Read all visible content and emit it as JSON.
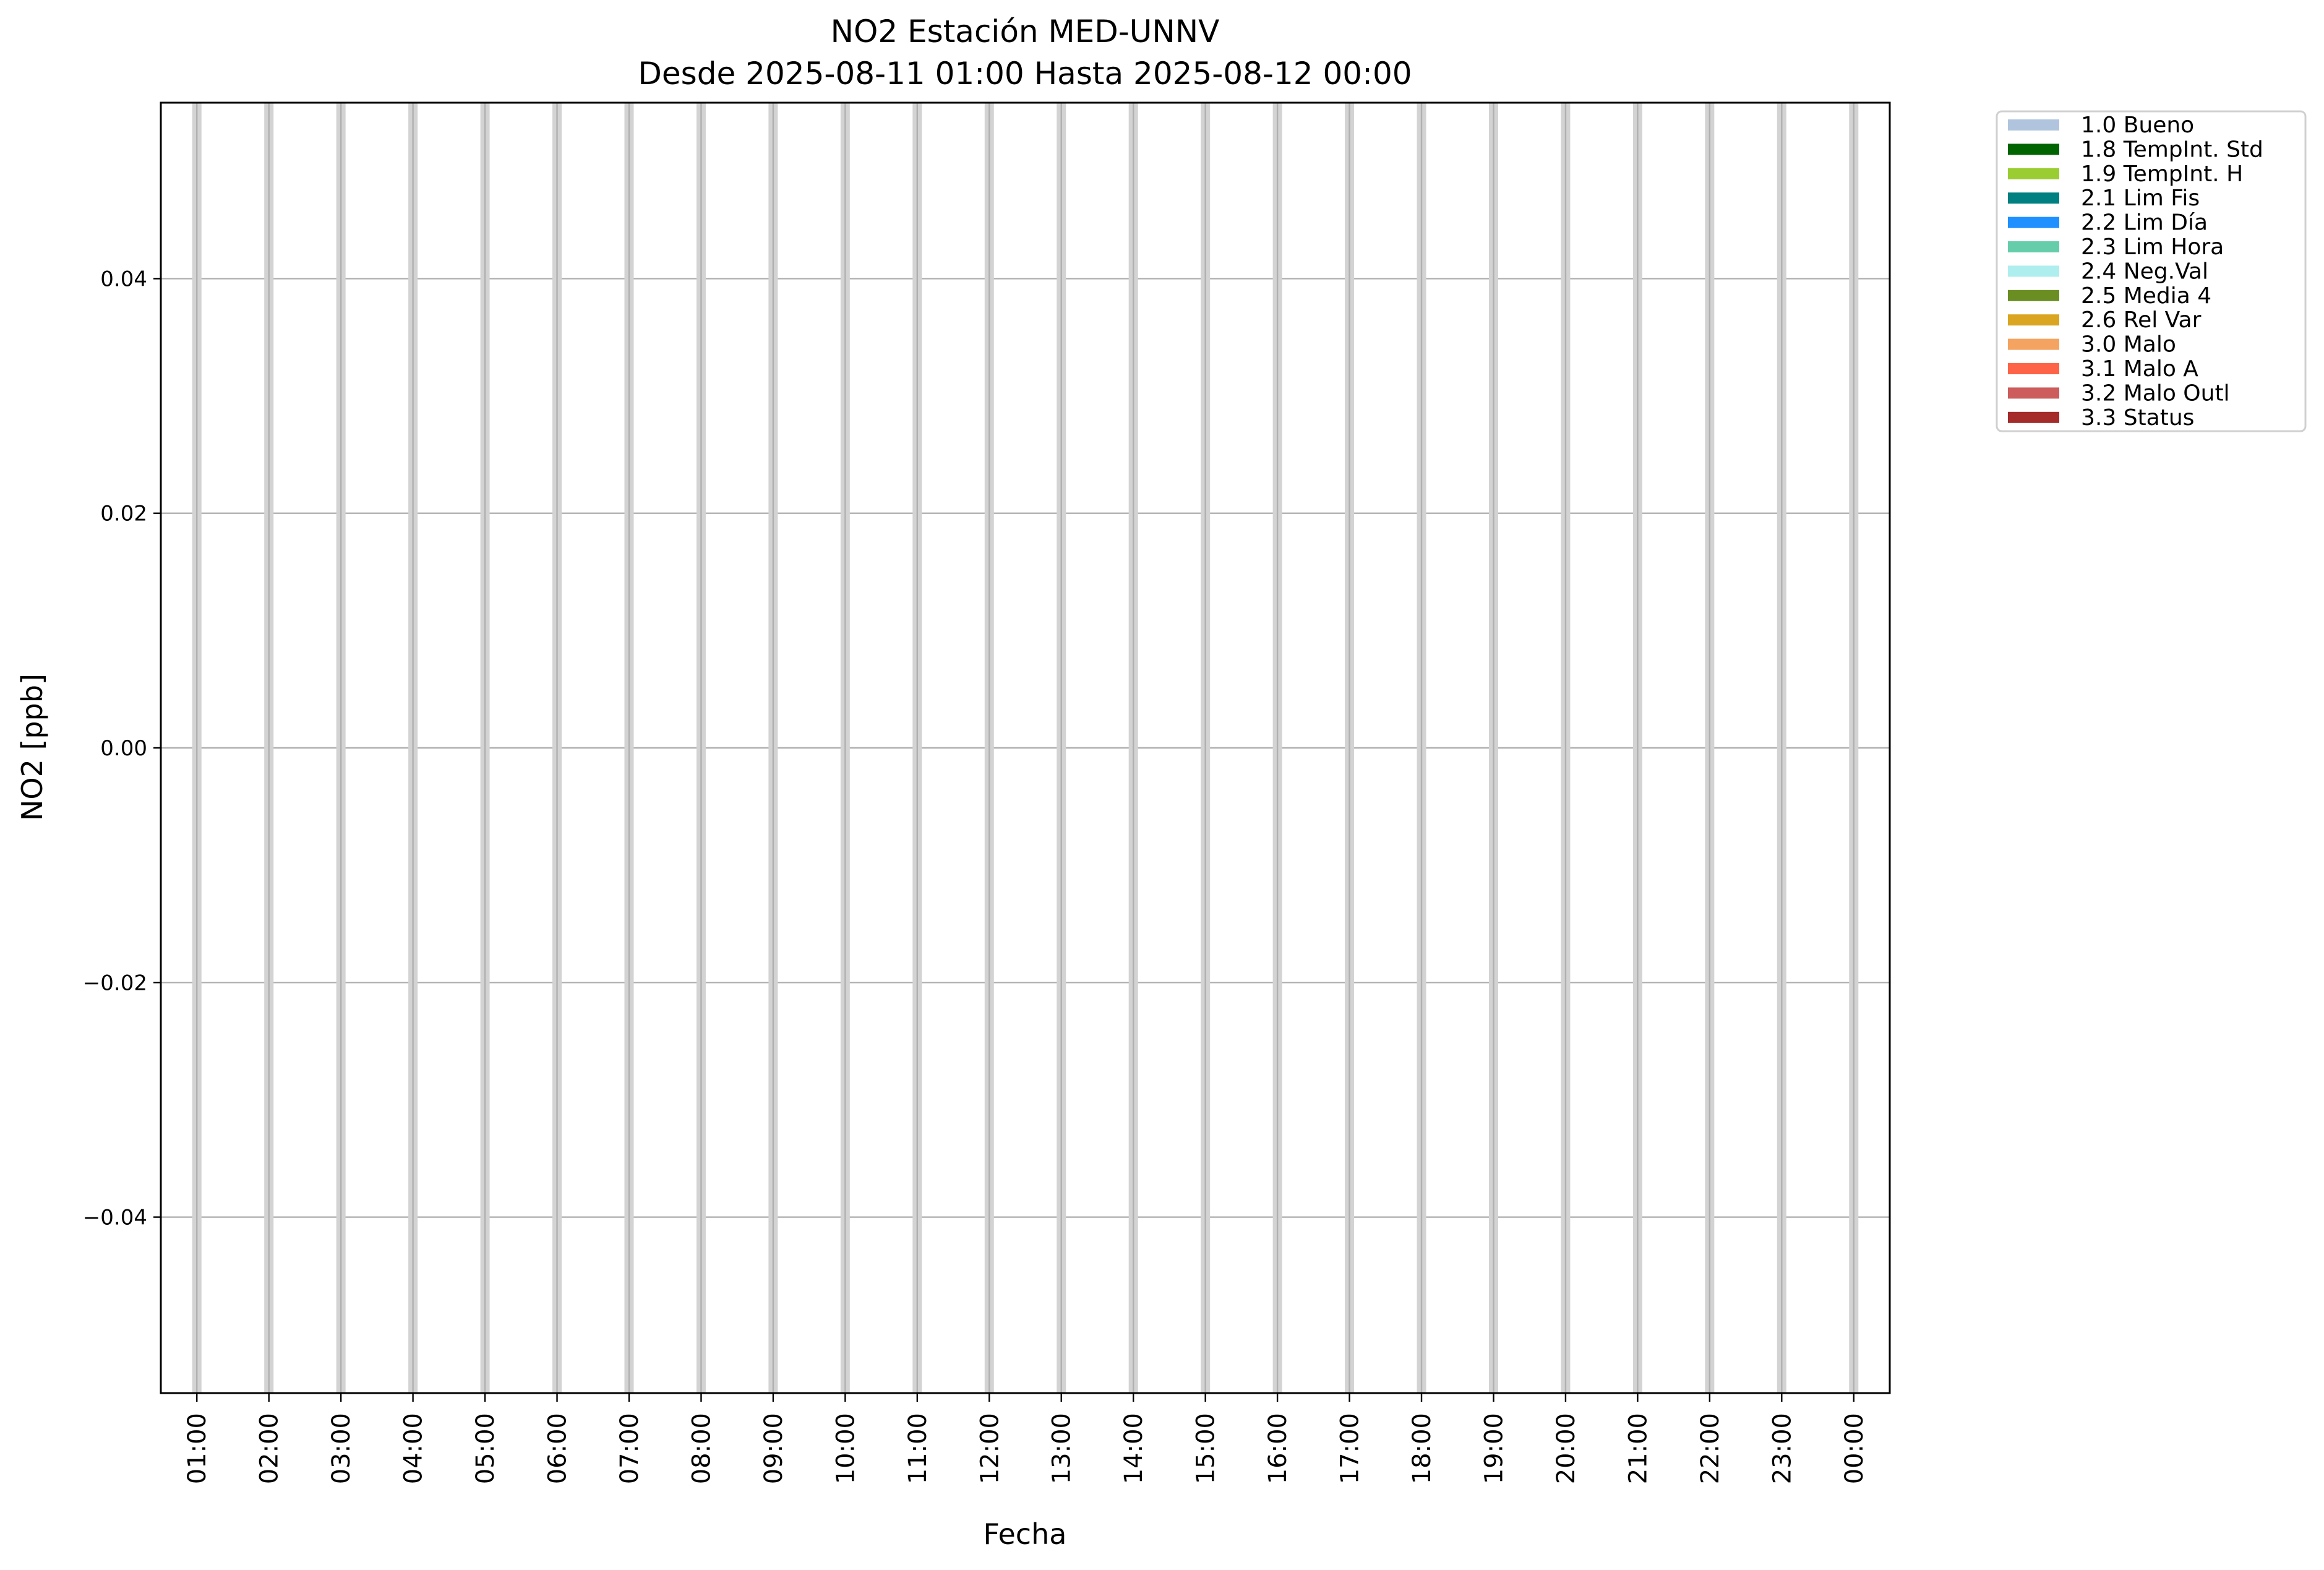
{
  "chart_data": {
    "type": "bar",
    "title": "NO2 Estación MED-UNNV",
    "subtitle": "Desde 2025-08-11 01:00 Hasta 2025-08-12 00:00",
    "xlabel": "Fecha",
    "ylabel": "NO2 [ppb]",
    "x_ticks": [
      "01:00",
      "02:00",
      "03:00",
      "04:00",
      "05:00",
      "06:00",
      "07:00",
      "08:00",
      "09:00",
      "10:00",
      "11:00",
      "12:00",
      "13:00",
      "14:00",
      "15:00",
      "16:00",
      "17:00",
      "18:00",
      "19:00",
      "20:00",
      "21:00",
      "22:00",
      "23:00",
      "00:00"
    ],
    "y_ticks": [
      0.04,
      0.02,
      0.0,
      -0.02,
      -0.04
    ],
    "y_tick_labels": [
      "0.04",
      "0.02",
      "0.00",
      "−0.02",
      "−0.04"
    ],
    "ylim": [
      -0.055,
      0.055
    ],
    "xlim": [
      "2025-08-11 00:30",
      "2025-08-12 00:30"
    ],
    "grid": true,
    "shaded_hours": [
      "01:00",
      "02:00",
      "03:00",
      "04:00",
      "05:00",
      "06:00",
      "07:00",
      "08:00",
      "09:00",
      "10:00",
      "11:00",
      "12:00",
      "13:00",
      "14:00",
      "15:00",
      "16:00",
      "17:00",
      "18:00",
      "19:00",
      "20:00",
      "21:00",
      "22:00",
      "23:00",
      "00:00"
    ],
    "shade_color": "#d3d3d3",
    "grid_color": "#b0b0b0",
    "legend_position": "outside-top-right",
    "legend": [
      {
        "label": "1.0 Bueno",
        "color": "#b0c4de"
      },
      {
        "label": "1.8 TempInt. Std",
        "color": "#006400"
      },
      {
        "label": "1.9 TempInt. H",
        "color": "#9acd32"
      },
      {
        "label": "2.1 Lim Fis",
        "color": "#008080"
      },
      {
        "label": "2.2 Lim Día",
        "color": "#1e90ff"
      },
      {
        "label": "2.3 Lim Hora",
        "color": "#66cdaa"
      },
      {
        "label": "2.4 Neg.Val",
        "color": "#afeeee"
      },
      {
        "label": "2.5 Media 4",
        "color": "#6b8e23"
      },
      {
        "label": "2.6 Rel Var",
        "color": "#daa520"
      },
      {
        "label": "3.0 Malo",
        "color": "#f4a460"
      },
      {
        "label": "3.1 Malo A",
        "color": "#ff6347"
      },
      {
        "label": "3.2 Malo Outl",
        "color": "#cd5c5c"
      },
      {
        "label": "3.3 Status",
        "color": "#a52a2a"
      }
    ]
  }
}
